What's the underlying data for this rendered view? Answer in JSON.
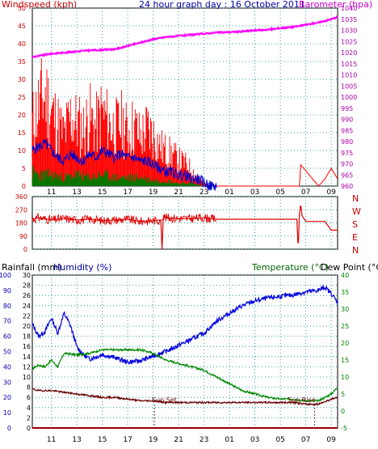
{
  "header": {
    "windspeed_label": "Windspeed (kph)",
    "title": "24 hour graph day : 16 October 2011",
    "barometer_label": "Barometer (hpa)"
  },
  "lower_header": {
    "rainfall_label": "Rainfall (mm)",
    "humidity_label": "Humidity (%)",
    "temperature_label": "Temperature (°C)",
    "dewpoint_label": "Dew Point (°C)"
  },
  "annotations": {
    "sun_set": "Sun Set",
    "sun_rise": "Sun Rise"
  },
  "compass": [
    "N",
    "W",
    "S",
    "E",
    "N"
  ],
  "colors": {
    "gust": "#ff0000",
    "wind": "#0000cc",
    "wind_min": "#007700",
    "barometer": "#ff00ff",
    "direction": "#dd0000",
    "humidity": "#0000dd",
    "temperature": "#008800",
    "dewpoint": "#660000",
    "rainfall": "#990000",
    "grid": "#008888",
    "left_axis": "#cc0000",
    "right_axis": "#aa00aa",
    "temp_axis": "#008800",
    "blue_axis": "#0000aa"
  },
  "x_tick_labels": [
    "11",
    "13",
    "15",
    "17",
    "19",
    "21",
    "23",
    "01",
    "03",
    "05",
    "07",
    "09"
  ],
  "chart_data": [
    {
      "type": "line",
      "title": "24 hour graph day : 16 October 2011",
      "xlabel": "",
      "ylabel": "Windspeed (kph)",
      "y2label": "Barometer (hpa)",
      "ylim": [
        0,
        50
      ],
      "y2lim": [
        960,
        1040
      ],
      "yticks": [
        "0",
        "5",
        "10",
        "15",
        "20",
        "25",
        "30",
        "35",
        "40",
        "45",
        "50"
      ],
      "y2ticks": [
        "960",
        "965",
        "970",
        "975",
        "980",
        "985",
        "990",
        "995",
        "1000",
        "1005",
        "1010",
        "1015",
        "1020",
        "1025",
        "1030",
        "1035",
        "1040"
      ],
      "x_hours": [
        9.5,
        33.5
      ],
      "series": [
        {
          "name": "Gust",
          "x": [
            9.5,
            10,
            10.5,
            11,
            11.5,
            12,
            12.5,
            13,
            13.5,
            14,
            14.5,
            15,
            15.5,
            16,
            16.5,
            17,
            17.5,
            18,
            18.5,
            19,
            19.5,
            20,
            20.5,
            21,
            21.5,
            22,
            22.5,
            23,
            23.5,
            24,
            30.5,
            30.6,
            32,
            32.5,
            33,
            33.5
          ],
          "values": [
            22,
            28,
            32,
            26,
            22,
            18,
            24,
            22,
            20,
            24,
            21,
            26,
            22,
            20,
            22,
            19,
            21,
            17,
            20,
            18,
            14,
            12,
            11,
            9,
            8,
            6,
            3,
            1,
            0,
            0,
            0,
            6,
            0,
            2,
            5,
            2
          ]
        },
        {
          "name": "Wind",
          "x": [
            9.5,
            10,
            10.5,
            11,
            11.5,
            12,
            12.5,
            13,
            13.5,
            14,
            14.5,
            15,
            15.5,
            16,
            16.5,
            17,
            17.5,
            18,
            18.5,
            19,
            19.5,
            20,
            20.5,
            21,
            21.5,
            22,
            22.5,
            23,
            23.5,
            24
          ],
          "values": [
            10,
            11,
            12,
            10,
            8,
            7,
            9,
            8,
            7,
            9,
            8,
            10,
            9,
            8,
            9,
            8,
            8,
            7,
            7,
            6,
            5,
            4,
            4,
            3,
            3,
            2,
            2,
            1,
            0,
            0
          ]
        },
        {
          "name": "Wind min",
          "x": [
            9.5,
            10,
            11,
            12,
            13,
            14,
            15,
            16,
            17,
            18,
            19,
            20,
            21,
            22,
            23,
            24
          ],
          "values": [
            5,
            4,
            4,
            3,
            4,
            3,
            4,
            3,
            3,
            3,
            2,
            2,
            1,
            1,
            0,
            0
          ]
        },
        {
          "name": "Barometer",
          "x": [
            9.5,
            10,
            11,
            12,
            13,
            14,
            15,
            16,
            17,
            18,
            19,
            20,
            21,
            22,
            23,
            24,
            25,
            26,
            27,
            28,
            29,
            30,
            31,
            32,
            33,
            33.5
          ],
          "values": [
            1018,
            1018.5,
            1019.5,
            1020,
            1020.5,
            1021,
            1021.2,
            1021.5,
            1023,
            1024.5,
            1026,
            1027,
            1027.5,
            1028,
            1028.5,
            1029,
            1029.2,
            1029.5,
            1030,
            1030.3,
            1031,
            1031.5,
            1032.5,
            1033.5,
            1035,
            1036
          ]
        }
      ]
    },
    {
      "type": "line",
      "title": "",
      "ylabel": "Wind direction (°)",
      "ylim": [
        0,
        360
      ],
      "yticks": [
        "0",
        "90",
        "180",
        "270",
        "360"
      ],
      "series": [
        {
          "name": "Direction",
          "x": [
            9.5,
            10,
            11,
            12,
            13,
            14,
            15,
            16,
            17,
            18,
            19,
            19.6,
            19.7,
            19.8,
            20,
            21,
            22,
            23,
            24,
            29,
            30.3,
            30.4,
            30.5,
            30.6,
            30.7,
            31,
            32.5,
            33,
            33.5
          ],
          "values": [
            205,
            215,
            200,
            210,
            200,
            205,
            195,
            200,
            205,
            190,
            195,
            200,
            0,
            230,
            215,
            210,
            210,
            215,
            205,
            205,
            205,
            0,
            240,
            310,
            230,
            190,
            190,
            130,
            130
          ]
        }
      ]
    },
    {
      "type": "line",
      "title": "",
      "ylabel": "Rainfall (mm) / Humidity (%)",
      "y2label": "Temperature (°C) / Dew Point (°C)",
      "ylim": [
        0,
        100
      ],
      "rain_ylim": [
        0,
        30
      ],
      "y2lim": [
        -5,
        40
      ],
      "yticks_humidity": [
        "0",
        "10",
        "20",
        "30",
        "40",
        "50",
        "60",
        "70",
        "80",
        "90",
        "100"
      ],
      "yticks_rain": [
        "0",
        "2",
        "4",
        "6",
        "8",
        "10",
        "12",
        "14",
        "16",
        "18",
        "20",
        "22",
        "24",
        "26",
        "28",
        "30"
      ],
      "y2ticks": [
        "-5",
        "0",
        "5",
        "10",
        "15",
        "20",
        "25",
        "30",
        "35",
        "40"
      ],
      "series": [
        {
          "name": "Humidity",
          "x": [
            9.5,
            10,
            10.5,
            11,
            11.5,
            12,
            12.5,
            13,
            13.5,
            14,
            15,
            16,
            17,
            18,
            19,
            20,
            21,
            22,
            23,
            24,
            25,
            26,
            27,
            28,
            29,
            30,
            31,
            32,
            32.5,
            33,
            33.5
          ],
          "values": [
            68,
            60,
            63,
            72,
            62,
            75,
            67,
            53,
            48,
            45,
            48,
            46,
            43,
            44,
            47,
            50,
            54,
            58,
            62,
            70,
            75,
            80,
            83,
            85,
            86,
            87,
            89,
            90,
            92,
            88,
            82
          ]
        },
        {
          "name": "Temperature",
          "x": [
            9.5,
            10,
            10.5,
            11,
            11.5,
            12,
            13,
            14,
            15,
            16,
            17,
            18,
            19,
            20,
            21,
            22,
            23,
            24,
            25,
            26,
            27,
            28,
            29,
            30,
            31,
            32,
            33,
            33.5
          ],
          "values": [
            12.5,
            13.5,
            13,
            15,
            13,
            17,
            16.5,
            17,
            18,
            18,
            18,
            18,
            17,
            15,
            14,
            13,
            12,
            10,
            8,
            6,
            5,
            4,
            3.5,
            3.5,
            3,
            3,
            5,
            7
          ]
        },
        {
          "name": "Dew Point",
          "x": [
            9.5,
            10,
            11,
            12,
            13,
            14,
            15,
            16,
            17,
            18,
            19,
            20,
            21,
            22,
            23,
            24,
            25,
            26,
            27,
            28,
            29,
            30,
            31,
            32,
            33,
            33.5
          ],
          "values": [
            6.5,
            6,
            6,
            5.5,
            5,
            4.5,
            4,
            4,
            3.5,
            3,
            3,
            2.5,
            2.5,
            2.5,
            2.5,
            2.5,
            2.5,
            2.5,
            2.5,
            2.5,
            2.5,
            2.5,
            2,
            2,
            3.5,
            4
          ]
        },
        {
          "name": "Rainfall",
          "x": [
            9.5,
            33.5
          ],
          "values": [
            0,
            0
          ]
        }
      ]
    }
  ]
}
